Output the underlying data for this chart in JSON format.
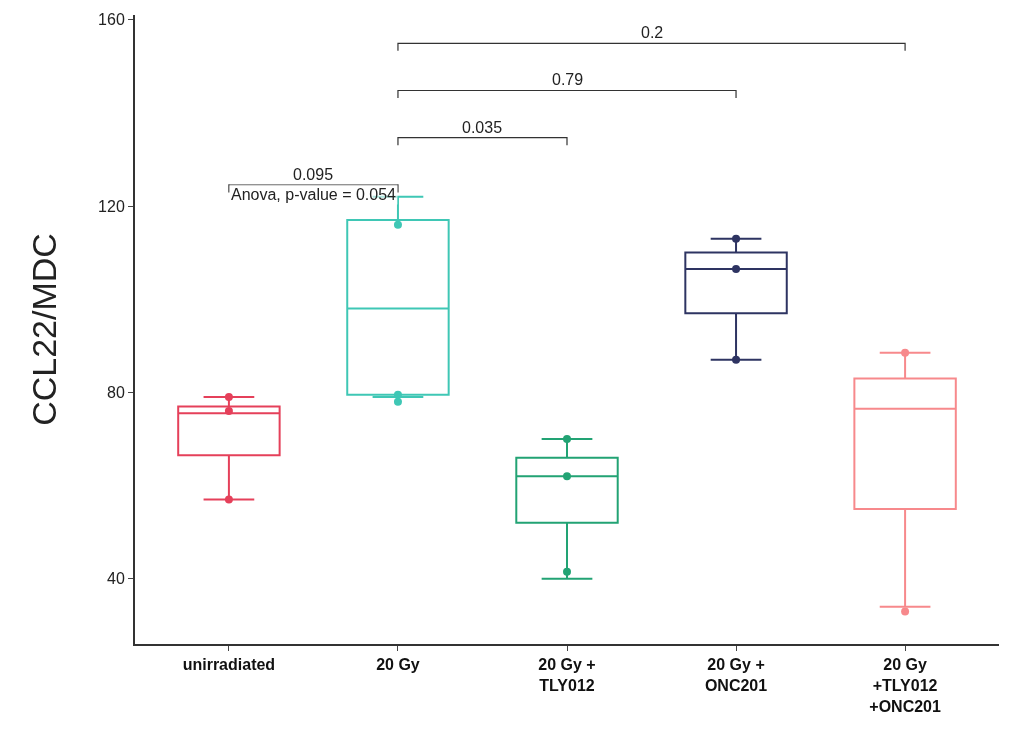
{
  "chart_data": {
    "type": "box",
    "ylabel": "CCL22/MDC",
    "categories": [
      "unirradiated",
      "20 Gy",
      "20 Gy +\nTLY012",
      "20 Gy +\nONC201",
      "20 Gy\n+TLY012\n+ONC201"
    ],
    "colors": [
      "#e5405a",
      "#3fc7b5",
      "#22a374",
      "#2e3462",
      "#f7898c"
    ],
    "boxes": [
      {
        "low": 57,
        "q1": 66.5,
        "median": 75.5,
        "q3": 77,
        "high": 79
      },
      {
        "low": 79,
        "q1": 79.5,
        "median": 98,
        "q3": 117,
        "high": 122
      },
      {
        "low": 40,
        "q1": 52,
        "median": 62,
        "q3": 66,
        "high": 70
      },
      {
        "low": 87,
        "q1": 97,
        "median": 106.5,
        "q3": 110,
        "high": 113
      },
      {
        "low": 34,
        "q1": 55,
        "median": 76.5,
        "q3": 83,
        "high": 88.5
      }
    ],
    "series": [
      {
        "type": "scatter",
        "x": [
          "unirradiated",
          "unirradiated",
          "unirradiated"
        ],
        "values": [
          57,
          76,
          79
        ],
        "color": "#e5405a"
      },
      {
        "type": "scatter",
        "x": [
          "20 Gy",
          "20 Gy",
          "20 Gy"
        ],
        "values": [
          116,
          79.5,
          78
        ],
        "color": "#3fc7b5"
      },
      {
        "type": "scatter",
        "x": [
          "20 Gy +\nTLY012",
          "20 Gy +\nTLY012",
          "20 Gy +\nTLY012"
        ],
        "values": [
          70,
          62,
          41.5
        ],
        "color": "#22a374"
      },
      {
        "type": "scatter",
        "x": [
          "20 Gy +\nONC201",
          "20 Gy +\nONC201",
          "20 Gy +\nONC201"
        ],
        "values": [
          113,
          106.5,
          87
        ],
        "color": "#2e3462"
      },
      {
        "type": "scatter",
        "x": [
          "20 Gy\n+TLY012\n+ONC201",
          "20 Gy\n+TLY012\n+ONC201"
        ],
        "values": [
          88.5,
          33
        ],
        "color": "#f7898c"
      }
    ],
    "ylim": [
      26,
      161
    ],
    "yticks": [
      40,
      80,
      120,
      160
    ],
    "grid": false,
    "marker": "circle",
    "annotations": [
      "0.2",
      "0.79",
      "0.035",
      "0.095",
      "Anova, p-value = 0.054"
    ]
  }
}
